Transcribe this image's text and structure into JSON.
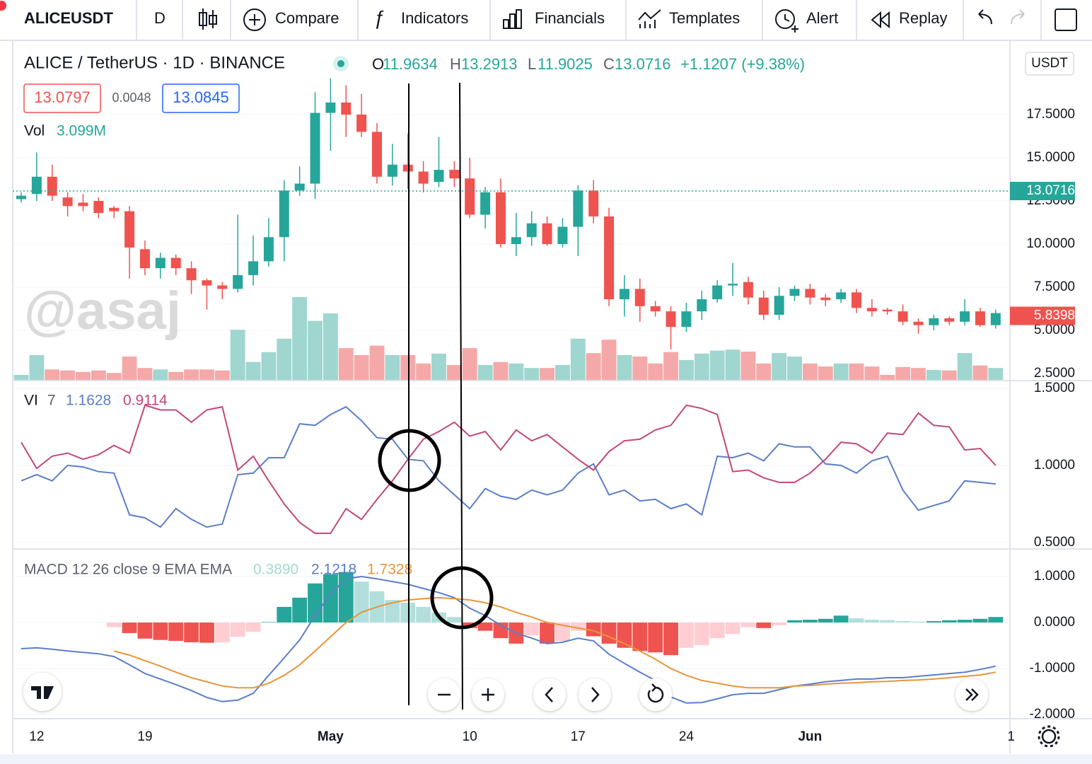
{
  "toolbar": {
    "symbol": "ALICEUSDT",
    "interval": "D",
    "buttons": [
      "Compare",
      "Indicators",
      "Financials",
      "Templates",
      "Alert",
      "Replay"
    ]
  },
  "legend": {
    "title": "ALICE / TetherUS · 1D · BINANCE",
    "ohlc": [
      {
        "label": "O",
        "value": "11.9634"
      },
      {
        "label": "H",
        "value": "13.2913"
      },
      {
        "label": "L",
        "value": "11.9025"
      },
      {
        "label": "C",
        "value": "13.0716"
      }
    ],
    "change": "+1.1207 (+9.38%)",
    "bid": "13.0797",
    "spread": "0.0048",
    "ask": "13.0845",
    "volume_label": "Vol",
    "volume_value": "3.099M",
    "currency": "USDT",
    "watermark": "@asaj"
  },
  "chart_data": [
    {
      "type": "candlestick",
      "categories": [
        null,
        "12",
        null,
        null,
        null,
        null,
        null,
        null,
        "19",
        null,
        null,
        null,
        null,
        null,
        null,
        null,
        null,
        null,
        null,
        null,
        "May",
        null,
        null,
        null,
        null,
        null,
        null,
        null,
        null,
        "10",
        null,
        null,
        null,
        null,
        null,
        null,
        "17",
        null,
        null,
        null,
        null,
        null,
        null,
        "24",
        null,
        null,
        null,
        null,
        null,
        null,
        null,
        "Jun",
        null,
        null,
        null,
        null,
        null,
        null,
        null,
        null,
        null,
        null,
        null,
        null,
        "1"
      ],
      "open": [
        12.6,
        12.9,
        13.9,
        12.7,
        12.4,
        12.5,
        12.1,
        11.9,
        9.7,
        8.6,
        9.2,
        8.6,
        7.9,
        7.6,
        7.4,
        8.2,
        9.0,
        10.4,
        13.1,
        13.5,
        17.6,
        18.2,
        17.5,
        16.5,
        13.9,
        14.6,
        14.2,
        13.6,
        14.3,
        13.8,
        11.7,
        13.0,
        10.0,
        10.4,
        11.2,
        10.0,
        11.0,
        13.1,
        11.6,
        6.8,
        7.4,
        6.4,
        6.1,
        5.2,
        6.1,
        6.8,
        7.6,
        7.8,
        6.9,
        5.9,
        7.0,
        7.4,
        6.9,
        6.8,
        7.2,
        6.3,
        6.2,
        6.1,
        5.5,
        5.3,
        5.7,
        5.5,
        6.1,
        5.3,
        null
      ],
      "high": [
        13.0,
        15.3,
        14.6,
        13.0,
        12.9,
        12.7,
        12.2,
        12.2,
        10.2,
        9.5,
        9.4,
        9.0,
        8.0,
        7.8,
        11.7,
        10.5,
        11.5,
        13.7,
        14.5,
        18.8,
        19.6,
        19.2,
        18.7,
        17.0,
        15.8,
        16.4,
        14.8,
        16.2,
        14.8,
        15.0,
        13.3,
        13.8,
        11.8,
        11.9,
        11.6,
        11.5,
        13.4,
        13.7,
        12.1,
        8.2,
        8.0,
        6.7,
        6.4,
        6.6,
        7.3,
        7.9,
        8.9,
        8.1,
        7.3,
        7.5,
        7.6,
        7.7,
        7.1,
        7.4,
        7.4,
        6.8,
        6.3,
        6.5,
        5.7,
        5.9,
        5.8,
        6.8,
        6.3,
        6.2,
        null
      ],
      "low": [
        12.4,
        12.5,
        12.5,
        11.6,
        11.9,
        11.5,
        11.5,
        8.0,
        8.2,
        8.0,
        8.2,
        7.1,
        6.2,
        6.8,
        7.2,
        7.6,
        8.7,
        9.0,
        12.8,
        12.6,
        15.4,
        16.2,
        16.2,
        13.5,
        13.4,
        13.2,
        13.0,
        13.3,
        13.3,
        11.5,
        10.9,
        9.8,
        9.3,
        9.9,
        9.9,
        9.8,
        9.3,
        11.2,
        6.4,
        5.8,
        5.5,
        5.8,
        3.9,
        4.9,
        5.6,
        6.6,
        7.0,
        6.5,
        5.6,
        5.6,
        6.7,
        6.5,
        6.4,
        6.6,
        6.0,
        5.8,
        5.9,
        5.3,
        4.8,
        5.0,
        5.3,
        5.3,
        5.2,
        5.1,
        null
      ],
      "close": [
        12.8,
        13.9,
        12.8,
        12.2,
        12.2,
        11.8,
        11.9,
        9.8,
        8.6,
        9.2,
        8.6,
        7.9,
        7.6,
        7.4,
        8.2,
        9.0,
        10.4,
        13.1,
        13.5,
        17.6,
        18.2,
        17.5,
        16.5,
        13.9,
        14.6,
        14.2,
        13.5,
        14.3,
        13.8,
        11.7,
        13.0,
        10.0,
        10.4,
        11.2,
        10.0,
        11.0,
        13.1,
        11.6,
        6.8,
        7.4,
        6.4,
        6.1,
        5.2,
        6.1,
        6.8,
        7.6,
        7.7,
        6.9,
        5.9,
        7.0,
        7.4,
        6.9,
        6.75,
        7.2,
        6.3,
        6.1,
        6.1,
        5.5,
        5.3,
        5.7,
        5.5,
        6.1,
        5.3,
        6.0,
        null
      ],
      "volume": [
        1.0,
        5.0,
        2.1,
        1.9,
        1.6,
        1.9,
        1.4,
        4.7,
        2.4,
        2.1,
        1.6,
        2.1,
        2.1,
        1.9,
        10.1,
        3.6,
        5.6,
        8.3,
        16.7,
        11.9,
        13.4,
        6.4,
        5.0,
        6.9,
        5.0,
        5.0,
        3.3,
        5.3,
        3.0,
        6.4,
        3.0,
        3.6,
        3.3,
        2.4,
        2.4,
        3.0,
        8.3,
        5.4,
        8.1,
        5.0,
        4.7,
        3.3,
        5.6,
        4.0,
        5.3,
        5.9,
        6.1,
        5.7,
        3.3,
        5.4,
        4.7,
        3.3,
        2.7,
        3.3,
        3.3,
        2.7,
        1.0,
        2.6,
        2.4,
        2.0,
        1.9,
        5.4,
        2.9,
        2.4,
        null
      ],
      "ylim": [
        2.13,
        21.68
      ],
      "volume_ylim": [
        0,
        68
      ],
      "yticks": [
        {
          "value": 17.5,
          "label": "17.5000"
        },
        {
          "value": 15,
          "label": "15.0000"
        },
        {
          "value": 12.5,
          "label": "12.5000"
        },
        {
          "value": 10,
          "label": "10.0000"
        },
        {
          "value": 7.5,
          "label": "7.5000"
        },
        {
          "value": 5,
          "label": "5.0000"
        },
        {
          "value": 2.5,
          "label": "2.5000"
        }
      ],
      "price_labels": [
        {
          "value": 13.0716,
          "label": "13.0716",
          "color": "#26a69a"
        },
        {
          "value": 5.8398,
          "label": "5.8398",
          "color": "#ef5350"
        }
      ],
      "up_color": "#26a69a",
      "down_color": "#ef5350",
      "volume_up_color": "#9fd6cf",
      "volume_down_color": "#f4a9a8",
      "grid": true
    },
    {
      "type": "line",
      "title": "VI",
      "params": "7",
      "legend_values": [
        "1.1628",
        "0.9114"
      ],
      "series": [
        {
          "color": "#5b7fc7",
          "values": [
            0.9,
            0.94,
            0.9,
            1.0,
            0.99,
            0.96,
            0.95,
            0.68,
            0.66,
            0.6,
            0.72,
            0.65,
            0.6,
            0.62,
            0.94,
            0.95,
            1.05,
            1.05,
            1.27,
            1.26,
            1.33,
            1.38,
            1.29,
            1.18,
            1.17,
            1.04,
            1.03,
            0.9,
            0.81,
            0.72,
            0.85,
            0.8,
            0.78,
            0.84,
            0.81,
            0.84,
            0.95,
            1.01,
            0.81,
            0.84,
            0.77,
            0.78,
            0.72,
            0.75,
            0.68,
            1.06,
            1.05,
            1.08,
            1.03,
            1.14,
            1.12,
            1.12,
            1.01,
            1.0,
            0.95,
            1.03,
            1.06,
            0.84,
            0.71,
            0.74,
            0.77,
            0.9,
            0.89,
            0.88,
            null
          ]
        },
        {
          "color": "#c2487a",
          "values": [
            1.15,
            0.98,
            1.06,
            1.08,
            1.04,
            1.07,
            1.13,
            1.08,
            1.39,
            1.36,
            1.36,
            1.28,
            1.36,
            1.38,
            0.97,
            1.06,
            0.9,
            0.75,
            0.63,
            0.56,
            0.56,
            0.72,
            0.65,
            0.78,
            0.9,
            1.04,
            1.17,
            1.22,
            1.28,
            1.19,
            1.22,
            1.1,
            1.23,
            1.16,
            1.2,
            1.12,
            1.04,
            0.97,
            1.09,
            1.16,
            1.17,
            1.23,
            1.26,
            1.39,
            1.37,
            1.33,
            0.96,
            0.97,
            0.92,
            0.89,
            0.89,
            0.95,
            1.04,
            1.15,
            1.14,
            1.08,
            1.21,
            1.2,
            1.34,
            1.26,
            1.25,
            1.1,
            1.11,
            1.0,
            null
          ]
        }
      ],
      "ylim": [
        0.463,
        1.541
      ],
      "yticks": [
        {
          "value": 1.5,
          "label": "1.5000"
        },
        {
          "value": 1,
          "label": "1.0000"
        },
        {
          "value": 0.5,
          "label": "0.5000"
        }
      ],
      "grid": true
    },
    {
      "type": "macd",
      "title": "MACD 12 26 close 9 EMA EMA",
      "legend_values": [
        "0.3890",
        "2.1218",
        "1.7328"
      ],
      "legend_colors": [
        "#a5d9d0",
        "#5b7fc7",
        "#e8953a"
      ],
      "histogram": [
        null,
        null,
        null,
        null,
        null,
        null,
        -0.1,
        -0.23,
        -0.35,
        -0.38,
        -0.4,
        -0.43,
        -0.44,
        -0.43,
        -0.31,
        -0.2,
        0.01,
        0.34,
        0.54,
        0.85,
        1.05,
        1.1,
        0.89,
        0.68,
        0.49,
        0.43,
        0.34,
        0.22,
        0.12,
        -0.12,
        -0.18,
        -0.34,
        -0.46,
        -0.28,
        -0.46,
        -0.4,
        -0.18,
        -0.3,
        -0.46,
        -0.55,
        -0.62,
        -0.65,
        -0.71,
        -0.55,
        -0.49,
        -0.34,
        -0.25,
        -0.1,
        -0.12,
        -0.06,
        0.05,
        0.06,
        0.08,
        0.15,
        0.09,
        0.06,
        0.05,
        0.03,
        0.02,
        0.03,
        0.05,
        0.06,
        0.08,
        0.12,
        null
      ],
      "histogram_colors": {
        "up_grow": "#26a69a",
        "up_fall": "#b2dfdb",
        "down_fall": "#ef5350",
        "down_grow": "#ffcdd2"
      },
      "series": [
        {
          "color": "#5b7fc7",
          "values": [
            -0.57,
            -0.55,
            -0.58,
            -0.62,
            -0.65,
            -0.68,
            -0.74,
            -0.92,
            -1.11,
            -1.23,
            -1.35,
            -1.48,
            -1.63,
            -1.72,
            -1.69,
            -1.54,
            -1.15,
            -0.77,
            -0.38,
            0.15,
            0.62,
            0.95,
            1.0,
            0.95,
            0.89,
            0.83,
            0.74,
            0.65,
            0.54,
            0.31,
            0.15,
            -0.06,
            -0.23,
            -0.34,
            -0.46,
            -0.43,
            -0.34,
            -0.4,
            -0.69,
            -0.89,
            -1.08,
            -1.26,
            -1.62,
            -1.75,
            -1.74,
            -1.66,
            -1.57,
            -1.54,
            -1.54,
            -1.46,
            -1.38,
            -1.34,
            -1.29,
            -1.26,
            -1.23,
            -1.23,
            -1.2,
            -1.2,
            -1.17,
            -1.14,
            -1.11,
            -1.08,
            -1.02,
            -0.95,
            null
          ]
        },
        {
          "color": "#e8953a",
          "values": [
            null,
            null,
            null,
            null,
            null,
            null,
            -0.62,
            -0.71,
            -0.83,
            -0.95,
            -1.08,
            -1.2,
            -1.29,
            -1.38,
            -1.42,
            -1.42,
            -1.32,
            -1.15,
            -0.92,
            -0.62,
            -0.31,
            0,
            0.22,
            0.34,
            0.43,
            0.49,
            0.52,
            0.54,
            0.52,
            0.49,
            0.43,
            0.34,
            0.22,
            0.12,
            0,
            -0.06,
            -0.12,
            -0.18,
            -0.31,
            -0.46,
            -0.62,
            -0.8,
            -1.0,
            -1.15,
            -1.26,
            -1.32,
            -1.38,
            -1.42,
            -1.42,
            -1.42,
            -1.38,
            -1.37,
            -1.34,
            -1.32,
            -1.31,
            -1.29,
            -1.28,
            -1.26,
            -1.25,
            -1.23,
            -1.2,
            -1.17,
            -1.14,
            -1.08,
            null
          ]
        }
      ],
      "ylim": [
        -2.077,
        1.569
      ],
      "yticks": [
        {
          "value": 1,
          "label": "1.0000"
        },
        {
          "value": 0,
          "label": "0.0000"
        },
        {
          "value": -1,
          "label": "-1.0000"
        },
        {
          "value": -2,
          "label": "-2.0000"
        }
      ],
      "grid": true
    }
  ]
}
